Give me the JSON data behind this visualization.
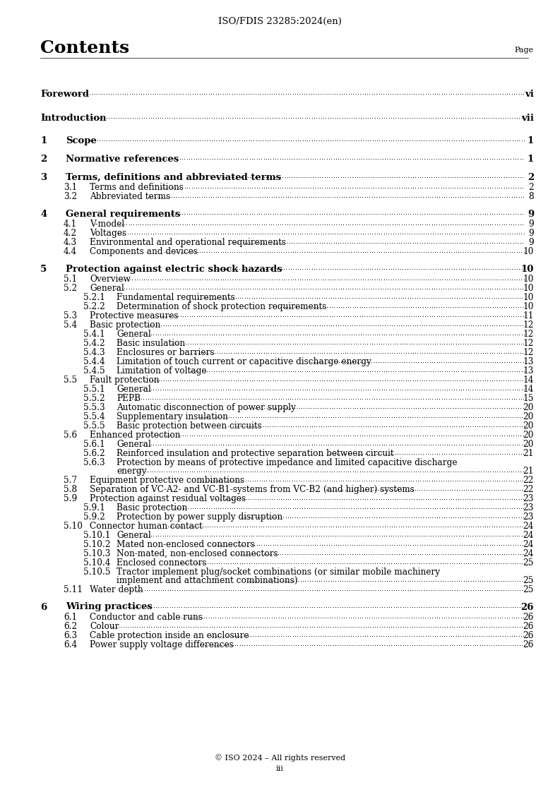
{
  "header": "ISO/FDIS 23285:2024(en)",
  "title": "Contents",
  "page_label": "Page",
  "footer_line1": "© ISO 2024 – All rights reserved",
  "footer_line2": "iii",
  "entries": [
    {
      "level": 0,
      "num": "Foreword",
      "text": "",
      "page": "vi",
      "bold": false,
      "extra_before": 18
    },
    {
      "level": 0,
      "num": "Introduction",
      "text": "",
      "page": "vii",
      "bold": false,
      "extra_before": 14
    },
    {
      "level": 1,
      "num": "1",
      "text": "Scope",
      "page": "1",
      "bold": true,
      "extra_before": 14
    },
    {
      "level": 1,
      "num": "2",
      "text": "Normative references",
      "page": "1",
      "bold": true,
      "extra_before": 10
    },
    {
      "level": 1,
      "num": "3",
      "text": "Terms, definitions and abbreviated terms",
      "page": "2",
      "bold": true,
      "extra_before": 10
    },
    {
      "level": 2,
      "num": "3.1",
      "text": "Terms and definitions",
      "page": "2",
      "bold": false,
      "extra_before": 0
    },
    {
      "level": 2,
      "num": "3.2",
      "text": "Abbreviated terms",
      "page": "8",
      "bold": false,
      "extra_before": 0
    },
    {
      "level": 1,
      "num": "4",
      "text": "General requirements",
      "page": "9",
      "bold": true,
      "extra_before": 10
    },
    {
      "level": 2,
      "num": "4.1",
      "text": "V-model",
      "page": "9",
      "bold": false,
      "extra_before": 0
    },
    {
      "level": 2,
      "num": "4.2",
      "text": "Voltages",
      "page": "9",
      "bold": false,
      "extra_before": 0
    },
    {
      "level": 2,
      "num": "4.3",
      "text": "Environmental and operational requirements",
      "page": "9",
      "bold": false,
      "extra_before": 0
    },
    {
      "level": 2,
      "num": "4.4",
      "text": "Components and devices",
      "page": "10",
      "bold": false,
      "extra_before": 0
    },
    {
      "level": 1,
      "num": "5",
      "text": "Protection against electric shock hazards",
      "page": "10",
      "bold": true,
      "extra_before": 10
    },
    {
      "level": 2,
      "num": "5.1",
      "text": "Overview",
      "page": "10",
      "bold": false,
      "extra_before": 0
    },
    {
      "level": 2,
      "num": "5.2",
      "text": "General",
      "page": "10",
      "bold": false,
      "extra_before": 0
    },
    {
      "level": 3,
      "num": "5.2.1",
      "text": "Fundamental requirements",
      "page": "10",
      "bold": false,
      "extra_before": 0
    },
    {
      "level": 3,
      "num": "5.2.2",
      "text": "Determination of shock protection requirements",
      "page": "10",
      "bold": false,
      "extra_before": 0
    },
    {
      "level": 2,
      "num": "5.3",
      "text": "Protective measures",
      "page": "11",
      "bold": false,
      "extra_before": 0
    },
    {
      "level": 2,
      "num": "5.4",
      "text": "Basic protection",
      "page": "12",
      "bold": false,
      "extra_before": 0
    },
    {
      "level": 3,
      "num": "5.4.1",
      "text": "General",
      "page": "12",
      "bold": false,
      "extra_before": 0
    },
    {
      "level": 3,
      "num": "5.4.2",
      "text": "Basic insulation",
      "page": "12",
      "bold": false,
      "extra_before": 0
    },
    {
      "level": 3,
      "num": "5.4.3",
      "text": "Enclosures or barriers",
      "page": "12",
      "bold": false,
      "extra_before": 0
    },
    {
      "level": 3,
      "num": "5.4.4",
      "text": "Limitation of touch current or capacitive discharge energy",
      "page": "13",
      "bold": false,
      "extra_before": 0
    },
    {
      "level": 3,
      "num": "5.4.5",
      "text": "Limitation of voltage",
      "page": "13",
      "bold": false,
      "extra_before": 0
    },
    {
      "level": 2,
      "num": "5.5",
      "text": "Fault protection",
      "page": "14",
      "bold": false,
      "extra_before": 0
    },
    {
      "level": 3,
      "num": "5.5.1",
      "text": "General",
      "page": "14",
      "bold": false,
      "extra_before": 0
    },
    {
      "level": 3,
      "num": "5.5.2",
      "text": "PEPB",
      "page": "15",
      "bold": false,
      "extra_before": 0
    },
    {
      "level": 3,
      "num": "5.5.3",
      "text": "Automatic disconnection of power supply",
      "page": "20",
      "bold": false,
      "extra_before": 0
    },
    {
      "level": 3,
      "num": "5.5.4",
      "text": "Supplementary insulation",
      "page": "20",
      "bold": false,
      "extra_before": 0
    },
    {
      "level": 3,
      "num": "5.5.5",
      "text": "Basic protection between circuits",
      "page": "20",
      "bold": false,
      "extra_before": 0
    },
    {
      "level": 2,
      "num": "5.6",
      "text": "Enhanced protection",
      "page": "20",
      "bold": false,
      "extra_before": 0
    },
    {
      "level": 3,
      "num": "5.6.1",
      "text": "General",
      "page": "20",
      "bold": false,
      "extra_before": 0
    },
    {
      "level": 3,
      "num": "5.6.2",
      "text": "Reinforced insulation and protective separation between circuit",
      "page": "21",
      "bold": false,
      "extra_before": 0
    },
    {
      "level": 3,
      "num": "5.6.3",
      "text": "Protection by means of protective impedance and limited capacitive discharge\nenergy",
      "page": "21",
      "bold": false,
      "extra_before": 0,
      "multiline": true
    },
    {
      "level": 2,
      "num": "5.7",
      "text": "Equipment protective combinations",
      "page": "22",
      "bold": false,
      "extra_before": 0
    },
    {
      "level": 2,
      "num": "5.8",
      "text": "Separation of VC-A2- and VC-B1-systems from VC-B2 (and higher) systems",
      "page": "22",
      "bold": false,
      "extra_before": 0
    },
    {
      "level": 2,
      "num": "5.9",
      "text": "Protection against residual voltages",
      "page": "23",
      "bold": false,
      "extra_before": 0
    },
    {
      "level": 3,
      "num": "5.9.1",
      "text": "Basic protection",
      "page": "23",
      "bold": false,
      "extra_before": 0
    },
    {
      "level": 3,
      "num": "5.9.2",
      "text": "Protection by power supply disruption",
      "page": "23",
      "bold": false,
      "extra_before": 0
    },
    {
      "level": 2,
      "num": "5.10",
      "text": "Connector human contact",
      "page": "24",
      "bold": false,
      "extra_before": 0
    },
    {
      "level": 3,
      "num": "5.10.1",
      "text": "General",
      "page": "24",
      "bold": false,
      "extra_before": 0
    },
    {
      "level": 3,
      "num": "5.10.2",
      "text": "Mated non-enclosed connectors",
      "page": "24",
      "bold": false,
      "extra_before": 0
    },
    {
      "level": 3,
      "num": "5.10.3",
      "text": "Non-mated, non-enclosed connectors",
      "page": "24",
      "bold": false,
      "extra_before": 0
    },
    {
      "level": 3,
      "num": "5.10.4",
      "text": "Enclosed connectors",
      "page": "25",
      "bold": false,
      "extra_before": 0
    },
    {
      "level": 3,
      "num": "5.10.5",
      "text": "Tractor implement plug/socket combinations (or similar mobile machinery\nimplement and attachment combinations)",
      "page": "25",
      "bold": false,
      "extra_before": 0,
      "multiline": true
    },
    {
      "level": 2,
      "num": "5.11",
      "text": "Water depth",
      "page": "25",
      "bold": false,
      "extra_before": 0
    },
    {
      "level": 1,
      "num": "6",
      "text": "Wiring practices",
      "page": "26",
      "bold": true,
      "extra_before": 10
    },
    {
      "level": 2,
      "num": "6.1",
      "text": "Conductor and cable runs",
      "page": "26",
      "bold": false,
      "extra_before": 0
    },
    {
      "level": 2,
      "num": "6.2",
      "text": "Colour",
      "page": "26",
      "bold": false,
      "extra_before": 0
    },
    {
      "level": 2,
      "num": "6.3",
      "text": "Cable protection inside an enclosure",
      "page": "26",
      "bold": false,
      "extra_before": 0
    },
    {
      "level": 2,
      "num": "6.4",
      "text": "Power supply voltage differences",
      "page": "26",
      "bold": false,
      "extra_before": 0
    }
  ]
}
